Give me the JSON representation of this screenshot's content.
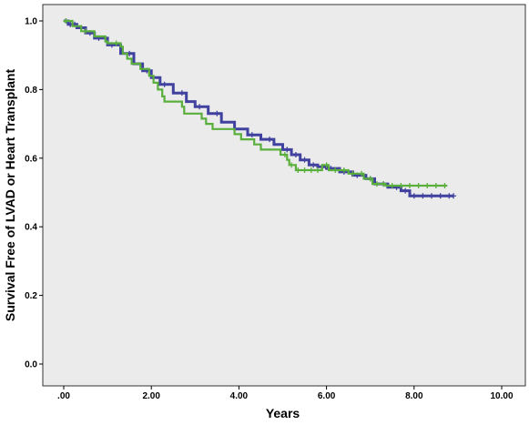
{
  "chart_data": {
    "type": "line",
    "title": "",
    "xlabel": "Years",
    "ylabel": "Survival Free of LVAD or Heart Transplant",
    "xlim": [
      0,
      10
    ],
    "ylim": [
      0,
      1
    ],
    "x_ticks": [
      ".00",
      "2.00",
      "4.00",
      "6.00",
      "8.00",
      "10.00"
    ],
    "y_ticks": [
      "0.0",
      "0.2",
      "0.4",
      "0.6",
      "0.8",
      "1.0"
    ],
    "grid": false,
    "legend": "none",
    "step": true,
    "colors": {
      "plot_background": "#ebebeb"
    },
    "series": [
      {
        "color": "#4141a0",
        "points": [
          [
            0,
            1.0
          ],
          [
            0.1,
            0.99
          ],
          [
            0.3,
            0.98
          ],
          [
            0.5,
            0.965
          ],
          [
            0.7,
            0.95
          ],
          [
            1.0,
            0.93
          ],
          [
            1.3,
            0.905
          ],
          [
            1.6,
            0.875
          ],
          [
            1.8,
            0.855
          ],
          [
            2.0,
            0.835
          ],
          [
            2.2,
            0.815
          ],
          [
            2.5,
            0.79
          ],
          [
            2.8,
            0.765
          ],
          [
            3.0,
            0.75
          ],
          [
            3.3,
            0.73
          ],
          [
            3.6,
            0.705
          ],
          [
            3.9,
            0.685
          ],
          [
            4.2,
            0.668
          ],
          [
            4.5,
            0.655
          ],
          [
            4.8,
            0.64
          ],
          [
            5.0,
            0.625
          ],
          [
            5.2,
            0.61
          ],
          [
            5.4,
            0.595
          ],
          [
            5.6,
            0.58
          ],
          [
            5.8,
            0.575
          ],
          [
            6.0,
            0.57
          ],
          [
            6.3,
            0.56
          ],
          [
            6.6,
            0.55
          ],
          [
            6.9,
            0.54
          ],
          [
            7.1,
            0.525
          ],
          [
            7.4,
            0.515
          ],
          [
            7.7,
            0.505
          ],
          [
            7.9,
            0.49
          ],
          [
            8.9,
            0.49
          ]
        ],
        "censors": [
          0.05,
          0.15,
          0.25,
          0.4,
          0.6,
          0.8,
          1.1,
          1.5,
          1.9,
          2.3,
          2.7,
          3.1,
          3.5,
          3.9,
          4.3,
          4.7,
          5.1,
          5.3,
          5.5,
          5.7,
          5.9,
          6.1,
          6.4,
          6.7,
          7.0,
          7.3,
          7.6,
          7.8,
          8.0,
          8.2,
          8.4,
          8.6,
          8.8,
          8.9
        ]
      },
      {
        "color": "#5aaf3c",
        "points": [
          [
            0,
            1.0
          ],
          [
            0.2,
            0.985
          ],
          [
            0.4,
            0.97
          ],
          [
            0.7,
            0.955
          ],
          [
            0.95,
            0.94
          ],
          [
            1.0,
            0.935
          ],
          [
            1.3,
            0.925
          ],
          [
            1.35,
            0.905
          ],
          [
            1.45,
            0.89
          ],
          [
            1.55,
            0.875
          ],
          [
            1.75,
            0.86
          ],
          [
            1.95,
            0.84
          ],
          [
            2.05,
            0.82
          ],
          [
            2.15,
            0.8
          ],
          [
            2.25,
            0.78
          ],
          [
            2.3,
            0.765
          ],
          [
            2.7,
            0.75
          ],
          [
            2.75,
            0.73
          ],
          [
            3.15,
            0.715
          ],
          [
            3.25,
            0.7
          ],
          [
            3.4,
            0.685
          ],
          [
            3.9,
            0.67
          ],
          [
            4.05,
            0.655
          ],
          [
            4.35,
            0.64
          ],
          [
            4.5,
            0.625
          ],
          [
            4.95,
            0.61
          ],
          [
            5.1,
            0.595
          ],
          [
            5.15,
            0.58
          ],
          [
            5.3,
            0.565
          ],
          [
            5.9,
            0.58
          ],
          [
            6.05,
            0.565
          ],
          [
            6.5,
            0.555
          ],
          [
            6.85,
            0.54
          ],
          [
            7.05,
            0.525
          ],
          [
            7.35,
            0.52
          ],
          [
            8.75,
            0.52
          ]
        ],
        "censors": [
          0.05,
          0.5,
          1.2,
          5.05,
          5.2,
          5.35,
          5.5,
          5.65,
          5.8,
          6.0,
          6.2,
          6.4,
          6.6,
          6.8,
          7.0,
          7.15,
          7.3,
          7.5,
          7.7,
          7.9,
          8.1,
          8.3,
          8.5,
          8.7
        ]
      }
    ]
  }
}
